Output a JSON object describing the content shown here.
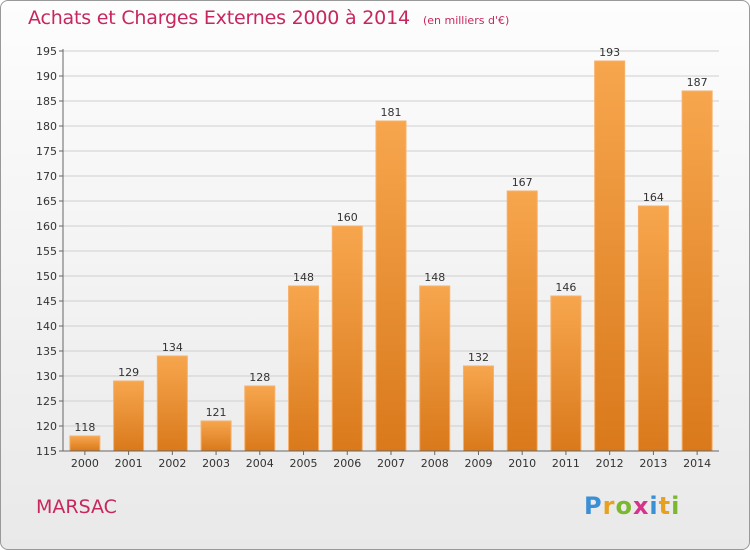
{
  "header": {
    "title": "Achats et Charges Externes 2000 à 2014",
    "unit": "(en milliers d'€)"
  },
  "location": "MARSAC",
  "brand": {
    "letters": [
      "P",
      "r",
      "o",
      "x",
      "i",
      "t",
      "i"
    ],
    "colors": [
      "#3a8fd6",
      "#e8a020",
      "#7cb82f",
      "#d6338a",
      "#3a8fd6",
      "#e8a020",
      "#7cb82f"
    ]
  },
  "chart_data": {
    "type": "bar",
    "title": "Achats et Charges Externes 2000 à 2014",
    "xlabel": "",
    "ylabel": "",
    "categories": [
      "2000",
      "2001",
      "2002",
      "2003",
      "2004",
      "2005",
      "2006",
      "2007",
      "2008",
      "2009",
      "2010",
      "2011",
      "2012",
      "2013",
      "2014"
    ],
    "values": [
      118,
      129,
      134,
      121,
      128,
      148,
      160,
      181,
      148,
      132,
      167,
      146,
      193,
      164,
      187
    ],
    "ylim": [
      115,
      195
    ],
    "yticks": [
      115,
      120,
      125,
      130,
      135,
      140,
      145,
      150,
      155,
      160,
      165,
      170,
      175,
      180,
      185,
      190,
      195
    ],
    "grid": "horizontal",
    "bar_color": "#f29a3c",
    "bar_color_dark": "#d77a1e"
  }
}
